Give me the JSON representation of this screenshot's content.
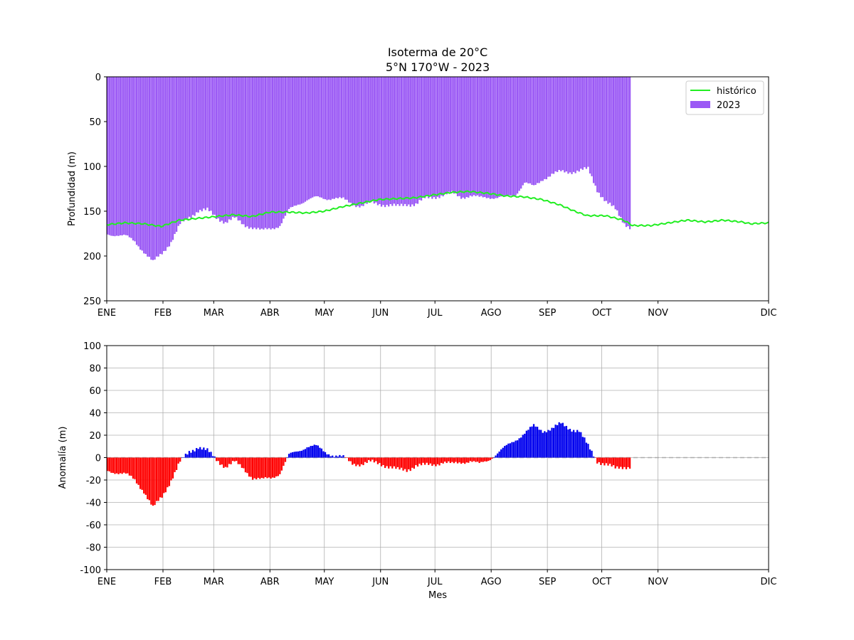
{
  "title": "Isoterma de 20°C",
  "subtitle": "5°N 170°W - 2023",
  "chart_data": [
    {
      "type": "bar",
      "ylabel": "Profundidad (m)",
      "ylim": [
        250,
        0
      ],
      "yticks": [
        0,
        50,
        100,
        150,
        200,
        250
      ],
      "xticks": [
        "ENE",
        "FEB",
        "MAR",
        "ABR",
        "MAY",
        "JUN",
        "JUL",
        "AGO",
        "SEP",
        "OCT",
        "NOV",
        "DIC"
      ],
      "grid": false,
      "legend_position": "top-right",
      "colors": {
        "bars_2023": "#9b59f5",
        "historico": "#22ee22"
      },
      "series": [
        {
          "name": "histórico",
          "type": "line",
          "x_day": [
            0,
            10,
            20,
            30,
            40,
            50,
            60,
            70,
            80,
            90,
            100,
            110,
            120,
            130,
            140,
            150,
            160,
            170,
            180,
            190,
            200,
            210,
            220,
            230,
            240,
            250,
            258,
            265,
            275,
            285,
            290,
            300,
            310,
            320,
            330,
            340,
            350,
            355,
            365
          ],
          "y": [
            165,
            163,
            164,
            167,
            160,
            158,
            156,
            154,
            156,
            151,
            151,
            152,
            150,
            145,
            141,
            137,
            136,
            135,
            132,
            129,
            128,
            130,
            133,
            134,
            137,
            143,
            150,
            155,
            155,
            160,
            166,
            166,
            163,
            160,
            162,
            160,
            162,
            164,
            163
          ]
        },
        {
          "name": "2023",
          "type": "bar",
          "x_day": [
            0,
            5,
            10,
            15,
            20,
            25,
            30,
            35,
            40,
            45,
            50,
            55,
            60,
            65,
            70,
            75,
            80,
            85,
            90,
            95,
            100,
            105,
            110,
            115,
            120,
            125,
            130,
            135,
            140,
            145,
            150,
            155,
            160,
            165,
            170,
            175,
            180,
            185,
            190,
            195,
            200,
            205,
            210,
            215,
            220,
            225,
            230,
            235,
            240,
            245,
            250,
            255,
            260,
            265,
            270,
            275,
            280,
            285,
            288
          ],
          "y": [
            176,
            176,
            178,
            184,
            195,
            207,
            197,
            184,
            165,
            157,
            149,
            149,
            157,
            162,
            158,
            165,
            168,
            172,
            169,
            166,
            149,
            142,
            137,
            135,
            136,
            135,
            137,
            142,
            144,
            141,
            142,
            143,
            145,
            142,
            142,
            136,
            134,
            132,
            130,
            134,
            133,
            135,
            134,
            135,
            134,
            131,
            118,
            123,
            114,
            109,
            106,
            106,
            105,
            103,
            126,
            140,
            148,
            163,
            168
          ]
        }
      ]
    },
    {
      "type": "bar",
      "xlabel": "Mes",
      "ylabel": "Anomalía (m)",
      "ylim": [
        -100,
        100
      ],
      "yticks": [
        -100,
        -80,
        -60,
        -40,
        -20,
        0,
        20,
        40,
        60,
        80,
        100
      ],
      "xticks": [
        "ENE",
        "FEB",
        "MAR",
        "ABR",
        "MAY",
        "JUN",
        "JUL",
        "AGO",
        "SEP",
        "OCT",
        "NOV",
        "DIC"
      ],
      "grid": true,
      "colors": {
        "positive": "#0000ee",
        "negative": "#ff0000",
        "zero_line": "#aaaaaa"
      },
      "x_day": [
        0,
        5,
        10,
        15,
        20,
        25,
        30,
        35,
        40,
        45,
        50,
        55,
        60,
        65,
        70,
        75,
        80,
        85,
        90,
        95,
        100,
        105,
        110,
        115,
        120,
        125,
        130,
        135,
        140,
        145,
        150,
        155,
        160,
        165,
        170,
        175,
        180,
        185,
        190,
        195,
        200,
        205,
        210,
        215,
        220,
        225,
        230,
        235,
        240,
        245,
        250,
        255,
        260,
        265,
        270,
        275,
        280,
        285,
        288
      ],
      "values": [
        -12,
        -13,
        -15,
        -20,
        -30,
        -45,
        -35,
        -20,
        -4,
        5,
        10,
        6,
        -2,
        -8,
        -4,
        -10,
        -18,
        -20,
        -18,
        -14,
        2,
        6,
        10,
        10,
        5,
        2,
        0,
        -5,
        -6,
        -4,
        -5,
        -8,
        -11,
        -11,
        -7,
        -7,
        -6,
        -4,
        -6,
        -4,
        -3,
        -6,
        -2,
        4,
        10,
        16,
        22,
        28,
        24,
        26,
        30,
        26,
        24,
        10,
        -3,
        -6,
        -10,
        -8,
        -8
      ]
    }
  ]
}
